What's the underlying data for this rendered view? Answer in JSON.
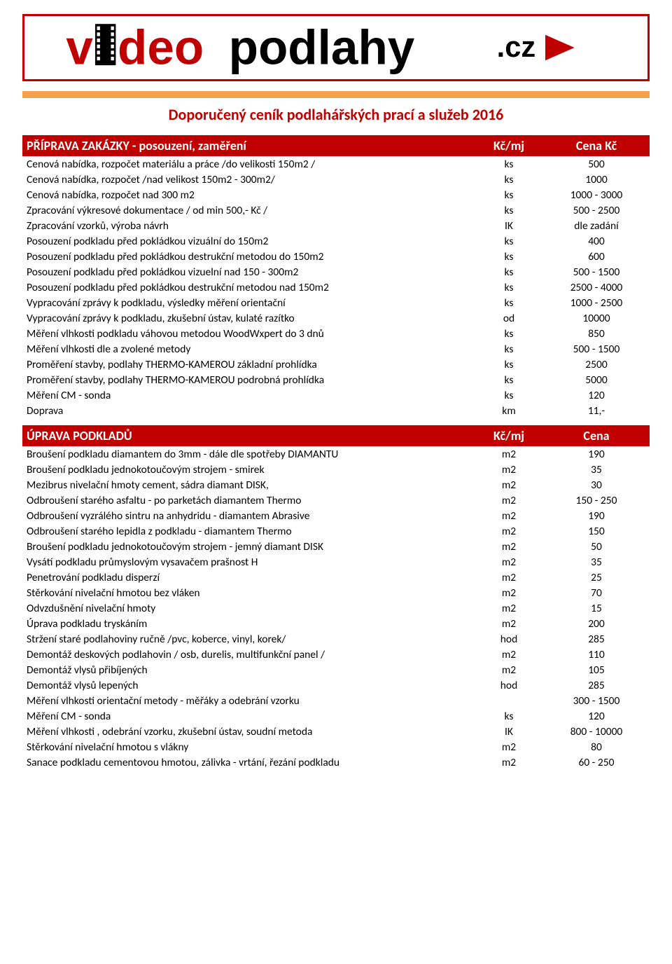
{
  "logo": {
    "prefix": "v",
    "mid": "deo",
    "main": "podlahy",
    "suffix": ".cz"
  },
  "page_title": "Doporučený ceník podlahářských prací a služeb 2016",
  "colors": {
    "brand_red": "#c00000",
    "orange_bar": "#f2a24b",
    "black": "#000000",
    "white": "#ffffff"
  },
  "sections": [
    {
      "header": {
        "title": "PŘÍPRAVA ZAKÁZKY - posouzení, zaměření",
        "unit": "Kč/mj",
        "price": "Cena Kč"
      },
      "rows": [
        {
          "desc": "Cenová nabídka, rozpočet materiálu a práce /do velikosti 150m2 /",
          "unit": "ks",
          "price": "500"
        },
        {
          "desc": "Cenová nabídka, rozpočet /nad velikost 150m2 - 300m2/",
          "unit": "ks",
          "price": "1000"
        },
        {
          "desc": "Cenová nabídka, rozpočet nad 300 m2",
          "unit": "ks",
          "price": "1000 - 3000"
        },
        {
          "desc": "Zpracování výkresové dokumentace / od  min 500,- Kč /",
          "unit": "ks",
          "price": "500 - 2500"
        },
        {
          "desc": "Zpracování vzorků, výroba návrh",
          "unit": "IK",
          "price": "dle zadání"
        },
        {
          "desc": "Posouzení podkladu před pokládkou vizuální do 150m2",
          "unit": "ks",
          "price": "400"
        },
        {
          "desc": "Posouzení podkladu před pokládkou destrukční metodou do 150m2",
          "unit": "ks",
          "price": "600"
        },
        {
          "desc": "Posouzení podkladu před pokládkou vizuelní nad 150 - 300m2",
          "unit": "ks",
          "price": "500 - 1500"
        },
        {
          "desc": "Posouzení podkladu před pokládkou destrukční metodou nad 150m2",
          "unit": "ks",
          "price": "2500 - 4000"
        },
        {
          "desc": "Vypracování zprávy k podkladu, výsledky měření orientační",
          "unit": "ks",
          "price": "1000 - 2500"
        },
        {
          "desc": "Vypracování zprávy k podkladu, zkušební ústav, kulaté razítko",
          "unit": "od",
          "price": "10000"
        },
        {
          "desc": "Měření vlhkosti podkladu váhovou metodou WoodWxpert do 3 dnů",
          "unit": "ks",
          "price": "850"
        },
        {
          "desc": "Měření vlhkosti dle a zvolené metody",
          "unit": "ks",
          "price": "500 - 1500"
        },
        {
          "desc": "Proměření stavby, podlahy THERMO-KAMEROU základní prohlídka",
          "unit": "ks",
          "price": "2500"
        },
        {
          "desc": "Proměření stavby, podlahy THERMO-KAMEROU podrobná prohlídka",
          "unit": "ks",
          "price": "5000"
        },
        {
          "desc": "Měření CM - sonda",
          "unit": "ks",
          "price": "120"
        },
        {
          "desc": "Doprava",
          "unit": "km",
          "price": "11,-"
        }
      ]
    },
    {
      "header": {
        "title": "ÚPRAVA PODKLADŮ",
        "unit": "Kč/mj",
        "price": "Cena"
      },
      "rows": [
        {
          "desc": "Broušení podkladu diamantem do 3mm - dále dle spotřeby DIAMANTU",
          "unit": "m2",
          "price": "190"
        },
        {
          "desc": "Broušení podkladu jednokotoučovým strojem - smirek",
          "unit": "m2",
          "price": "35"
        },
        {
          "desc": "Mezibrus nivelační hmoty cement, sádra diamant DISK,",
          "unit": "m2",
          "price": "30"
        },
        {
          "desc": "Odbroušení starého asfaltu - po parketách diamantem Thermo",
          "unit": "m2",
          "price": "150 - 250"
        },
        {
          "desc": "Odbroušení vyzrálého sintru na anhydridu - diamantem Abrasive",
          "unit": "m2",
          "price": "190"
        },
        {
          "desc": "Odbroušení starého lepidla z podkladu - diamantem Thermo",
          "unit": "m2",
          "price": "150"
        },
        {
          "desc": "Broušení podkladu jednokotoučovým strojem - jemný diamant DISK",
          "unit": "m2",
          "price": "50"
        },
        {
          "desc": "Vysátí podkladu průmyslovým vysavačem prašnost H",
          "unit": "m2",
          "price": "35"
        },
        {
          "desc": "Penetrování podkladu disperzí",
          "unit": "m2",
          "price": "25"
        },
        {
          "desc": "Stěrkování nivelační hmotou bez vláken",
          "unit": "m2",
          "price": "70"
        },
        {
          "desc": "Odvzdušnění nivelační hmoty",
          "unit": "m2",
          "price": "15"
        },
        {
          "desc": "Úprava podkladu tryskáním",
          "unit": "m2",
          "price": "200"
        },
        {
          "desc": "Stržení staré podlahoviny  ručně /pvc, koberce, vinyl, korek/",
          "unit": "hod",
          "price": "285"
        },
        {
          "desc": "Demontáž deskových podlahovin / osb, durelis, multifunkční panel /",
          "unit": "m2",
          "price": "110"
        },
        {
          "desc": "Demontáž vlysů přibíjených",
          "unit": "m2",
          "price": "105"
        },
        {
          "desc": "Demontáž vlysů lepených",
          "unit": "hod",
          "price": "285"
        },
        {
          "desc": "Měření vlhkosti orientační metody - měřáky a odebrání vzorku",
          "unit": "",
          "price": "300 - 1500"
        },
        {
          "desc": "Měření CM - sonda",
          "unit": "ks",
          "price": "120"
        },
        {
          "desc": "Měření vlhkosti , odebrání vzorku, zkušební ústav, soudní metoda",
          "unit": "IK",
          "price": "800 - 10000"
        },
        {
          "desc": "Stěrkování nivelační hmotou s vlákny",
          "unit": "m2",
          "price": "80"
        },
        {
          "desc": "Sanace podkladu cementovou hmotou, zálivka - vrtání, řezání podkladu",
          "unit": "m2",
          "price": "60 - 250"
        }
      ]
    }
  ]
}
